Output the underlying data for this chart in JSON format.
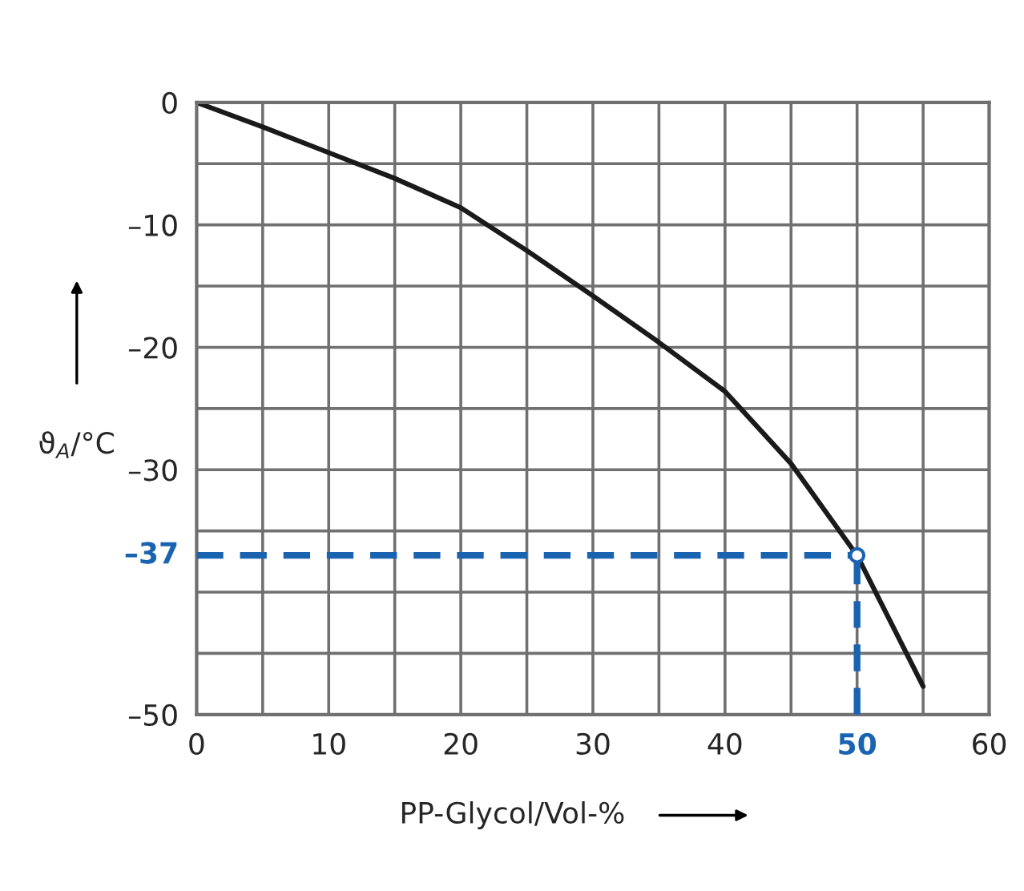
{
  "chart_data": {
    "type": "line",
    "xlabel": "PP-Glycol/Vol-%",
    "ylabel": "ϑ$_{A}$/°C",
    "x": [
      0,
      5,
      10,
      15,
      20,
      25,
      30,
      35,
      40,
      45,
      50,
      55
    ],
    "series": [
      {
        "color": "#1a1a1a",
        "values": [
          0,
          -2.0,
          -4.1,
          -6.2,
          -8.6,
          -12.1,
          -15.8,
          -19.6,
          -23.6,
          -29.5,
          -37,
          -47.7
        ]
      }
    ],
    "xlim": [
      0,
      60
    ],
    "ylim": [
      -50,
      0
    ],
    "xticks": [
      0,
      {
        "value": 5,
        "label": null
      },
      10,
      {
        "value": 15,
        "label": null
      },
      20,
      {
        "value": 25,
        "label": null
      },
      30,
      {
        "value": 35,
        "label": null
      },
      40,
      {
        "value": 45,
        "label": null
      },
      {
        "value": 50,
        "label": null
      },
      {
        "value": 55,
        "label": null
      },
      60
    ],
    "yticks": [
      {
        "value": -50,
        "label": "–50"
      },
      {
        "value": -45,
        "label": null
      },
      {
        "value": -40,
        "label": null
      },
      {
        "value": -35,
        "label": null
      },
      {
        "value": -30,
        "label": "–30"
      },
      {
        "value": -25,
        "label": null
      },
      {
        "value": -20,
        "label": "–20"
      },
      {
        "value": -15,
        "label": null
      },
      {
        "value": -10,
        "label": "–10"
      },
      {
        "value": -5,
        "label": null
      },
      0
    ],
    "ref_lines": [
      {
        "axis": "y",
        "value": -37,
        "label": "–37",
        "color": "#1a63b0",
        "line_style": "dashed"
      },
      {
        "axis": "x",
        "value": 50,
        "label": "50",
        "color": "#1a63b0",
        "line_style": "dashed"
      }
    ],
    "grid": true,
    "marker": "none",
    "line_style": "solid",
    "legend": false
  }
}
